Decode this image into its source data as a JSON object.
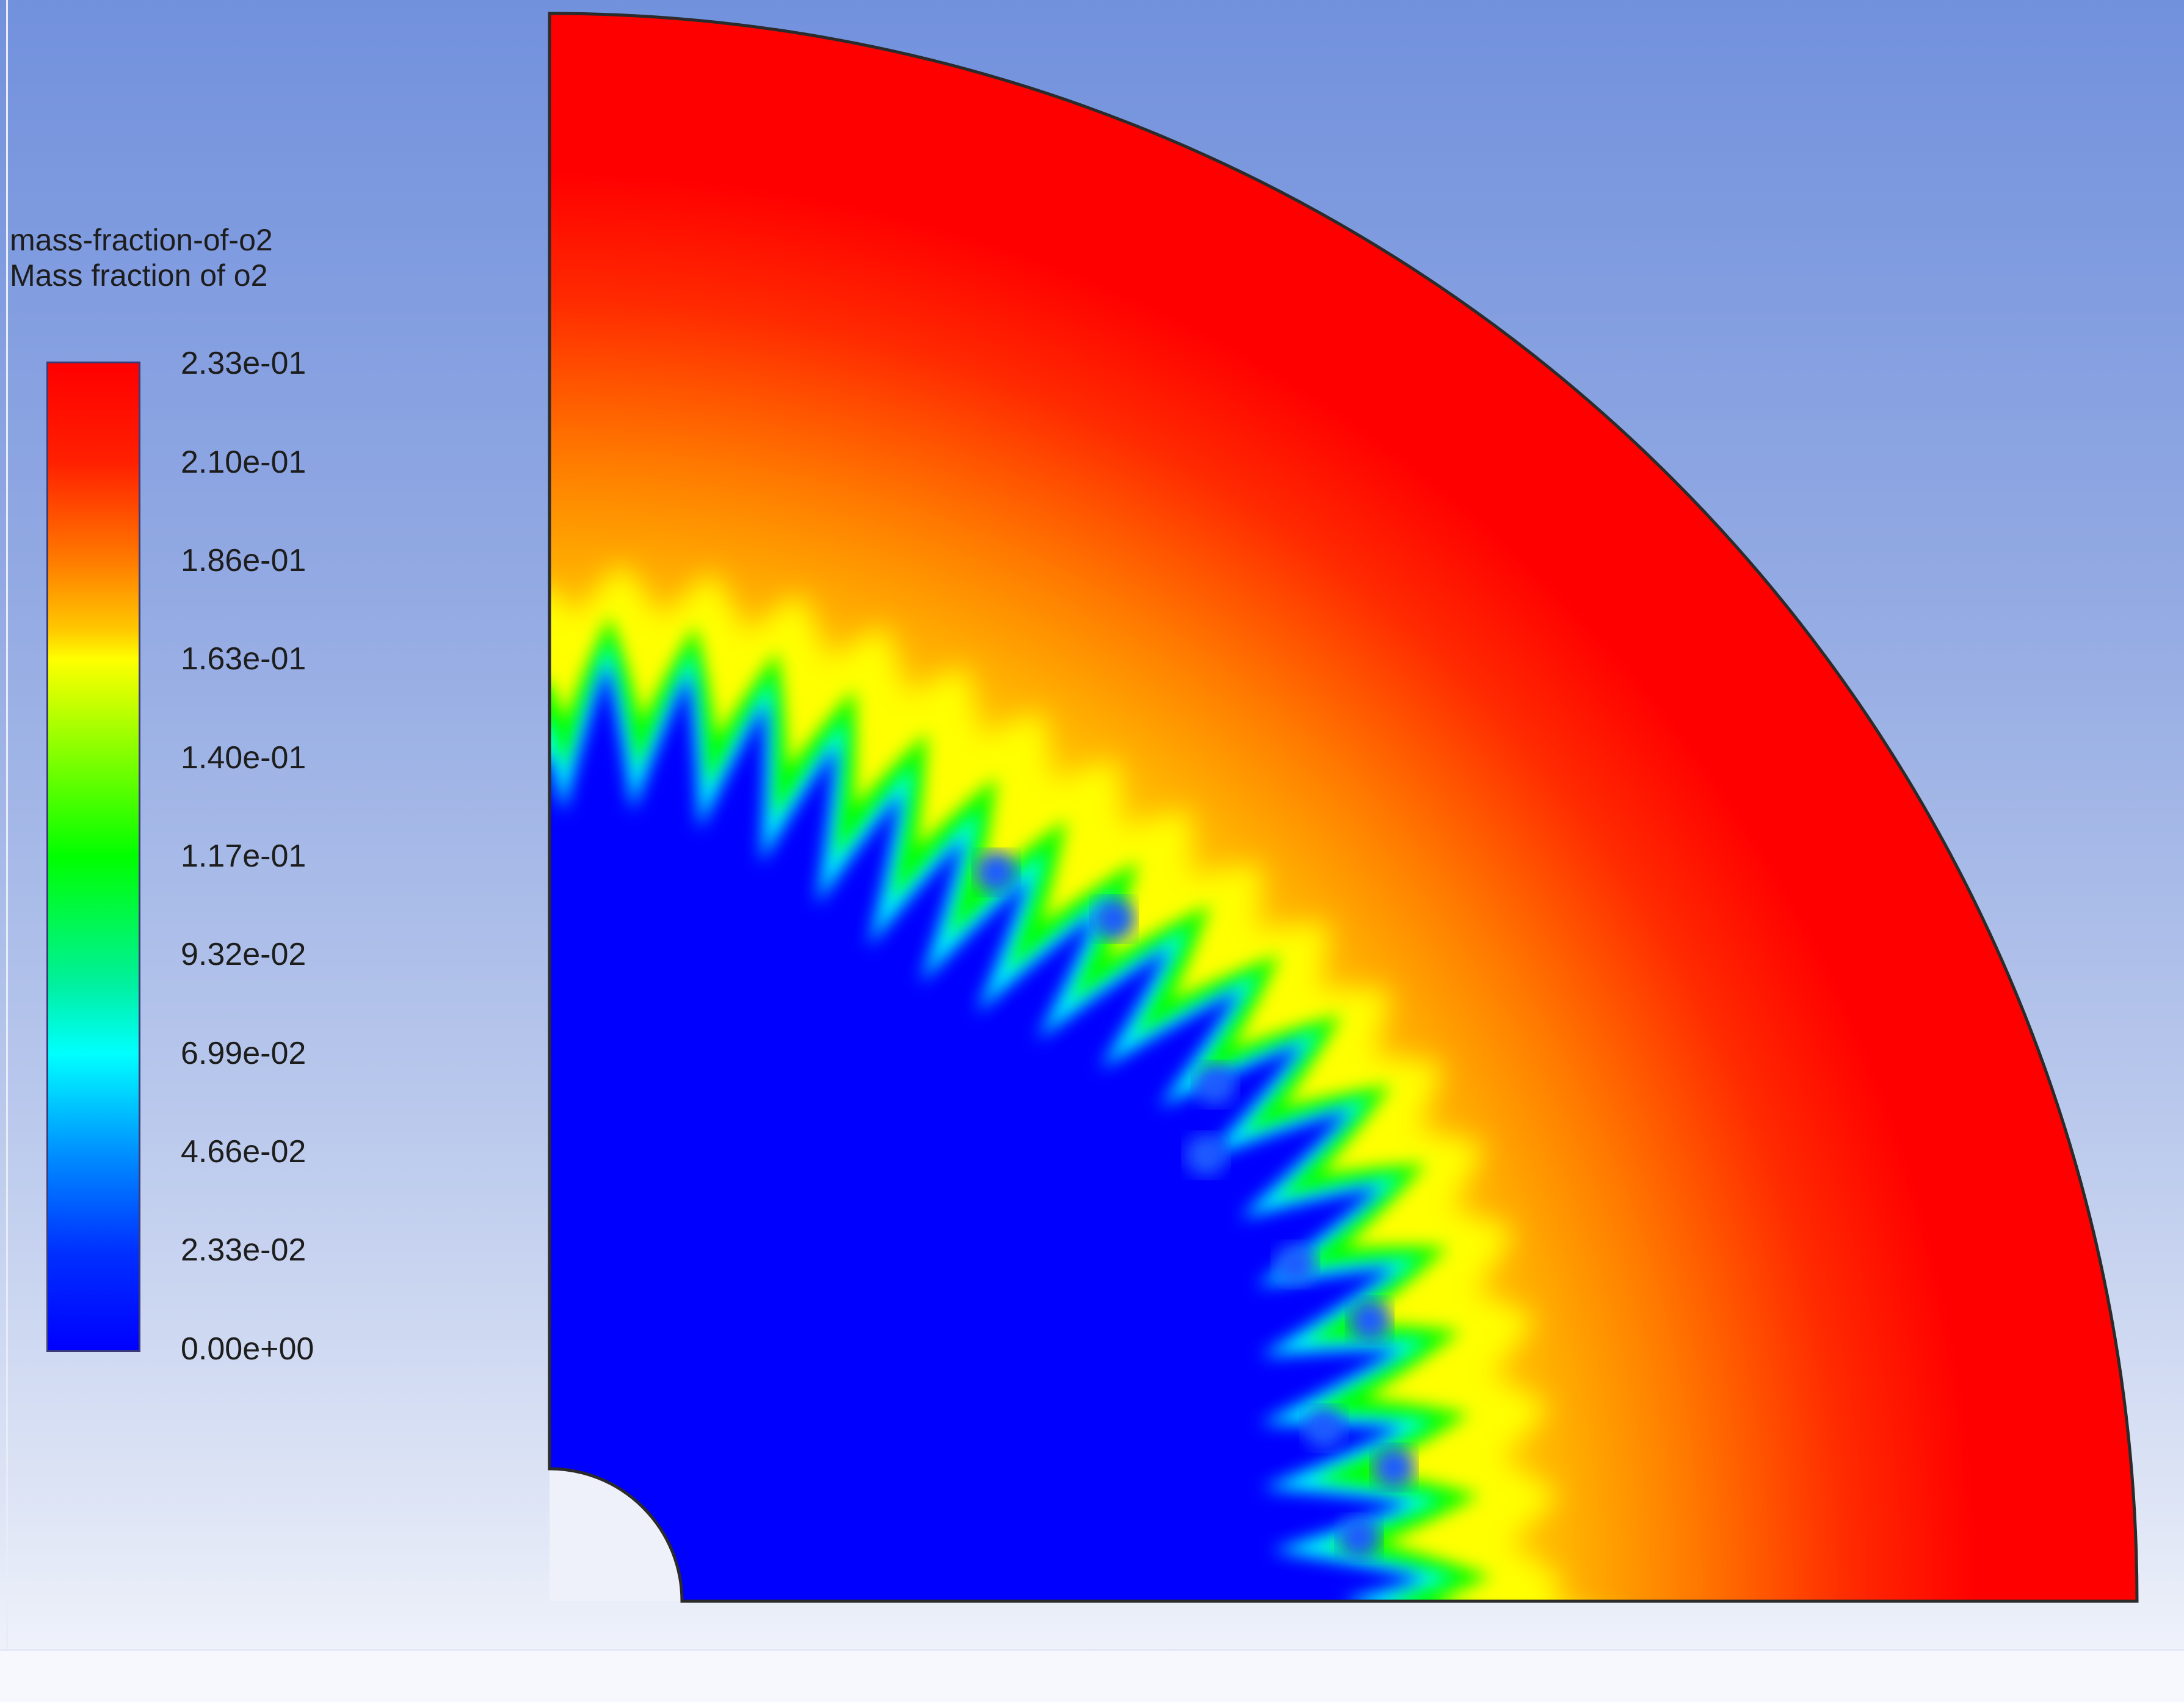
{
  "legend": {
    "variable_name": "mass-fraction-of-o2",
    "variable_label": "Mass fraction of o2",
    "ticks": [
      "2.33e-01",
      "2.10e-01",
      "1.86e-01",
      "1.63e-01",
      "1.40e-01",
      "1.17e-01",
      "9.32e-02",
      "6.99e-02",
      "4.66e-02",
      "2.33e-02",
      "0.00e+00"
    ],
    "min": 0.0,
    "max": 0.233,
    "colormap": [
      "#0000ff",
      "#0030ff",
      "#0090ff",
      "#00ffff",
      "#00f0a0",
      "#00ff00",
      "#a6ff00",
      "#ffff00",
      "#ffc800",
      "#ff7b00",
      "#ff2000",
      "#ff0000"
    ]
  },
  "contour": {
    "geometry": "quarter-annulus",
    "colors": {
      "outer": "#ff0000",
      "orange": "#ff7b00",
      "yellow": "#ffff00",
      "green": "#00ff00",
      "cyan": "#00ffff",
      "inner": "#0000ff",
      "hole": "#eef0fa",
      "boundary": "#2b2b2b"
    }
  }
}
